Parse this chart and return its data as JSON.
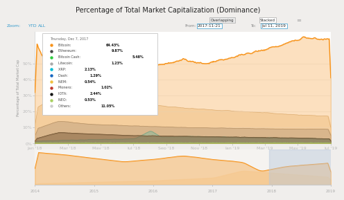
{
  "title": "Percentage of Total Market Capitalization (Dominance)",
  "ylabel": "Percentage of Total Market Cap",
  "bg_color": "#f0eeec",
  "chart_bg": "#ffffff",
  "tooltip_header": "Thursday, Dec 7, 2017",
  "tooltip_entries": [
    [
      "Bitcoin: 64.43%",
      "#f7931a"
    ],
    [
      "Ethereum: 9.87%",
      "#444444"
    ],
    [
      "Bitcoin Cash: 5.48%",
      "#2ecc40"
    ],
    [
      "Litecoin: 1.23%",
      "#aaaaaa"
    ],
    [
      "XRP: 2.13%",
      "#00bcd4"
    ],
    [
      "Dash: 1.29%",
      "#1565c0"
    ],
    [
      "NEM: 0.54%",
      "#f0c040"
    ],
    [
      "Monero: 1.02%",
      "#c0392b"
    ],
    [
      "IOTA: 2.44%",
      "#111111"
    ],
    [
      "NEO: 0.53%",
      "#a8d060"
    ],
    [
      "Others: 11.05%",
      "#cccccc"
    ]
  ],
  "date_labels": [
    "Jan '18",
    "Mar '18",
    "May '18",
    "Jul '18",
    "Sep '18",
    "Nov '18",
    "Jan '19",
    "Mar '19",
    "May '19",
    "Jul '19"
  ],
  "date_labels_mini": [
    "2014",
    "2015",
    "2016",
    "2017",
    "2018",
    "2019"
  ],
  "from_date": "2017-11-21",
  "to_date": "Jul 11, 2019",
  "btc_color": "#f7931a",
  "others_color": "#f5e6d0",
  "eth_color": "#c8bfb5",
  "teal_color": "#7ec8c8",
  "green_color": "#7ec880",
  "dark_color": "#444444",
  "ylim": [
    0,
    70
  ],
  "yticks": [
    0,
    10,
    20,
    30,
    40,
    50
  ],
  "ytick_labels": [
    "0%",
    "10%",
    "20%",
    "30%",
    "40%",
    "50%"
  ]
}
